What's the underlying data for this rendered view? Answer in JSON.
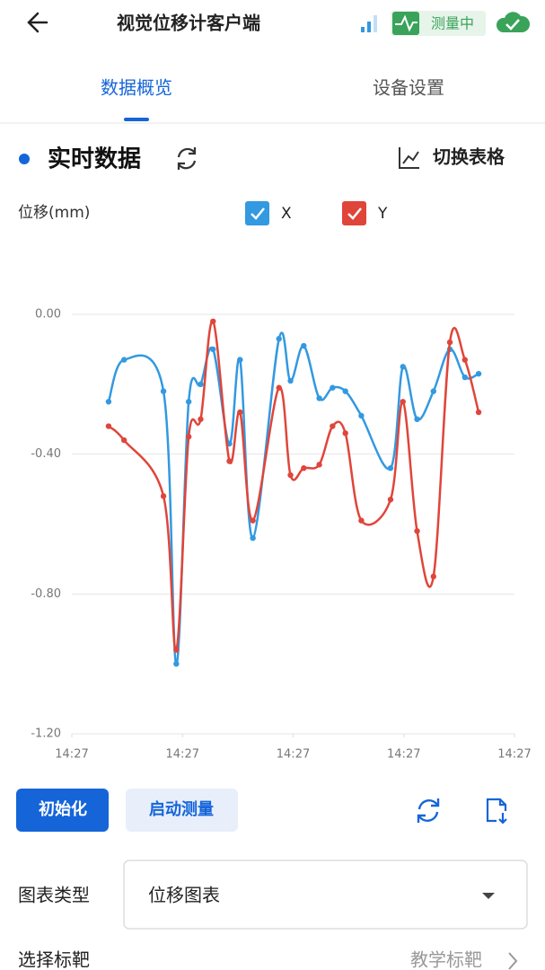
{
  "header": {
    "title": "视觉位移计客户端",
    "status": "测量中"
  },
  "tabs": [
    "数据概览",
    "设备设置"
  ],
  "section": {
    "title": "实时数据",
    "toggle": "切换表格"
  },
  "chart_data": {
    "type": "line",
    "y_label": "位移(mm)",
    "x": [
      8.3,
      11.8,
      20.7,
      23.6,
      26.4,
      29.1,
      31.9,
      35.6,
      38.0,
      40.9,
      46.8,
      49.4,
      52.4,
      55.9,
      58.9,
      61.8,
      65.4,
      72.0,
      74.8,
      78.0,
      81.7,
      85.4,
      88.8,
      91.9
    ],
    "xlim": [
      0,
      100
    ],
    "xticks": [
      {
        "value": 0,
        "label": "14:27"
      },
      {
        "value": 25,
        "label": "14:27"
      },
      {
        "value": 50,
        "label": "14:27"
      },
      {
        "value": 75,
        "label": "14:27"
      },
      {
        "value": 100,
        "label": "14:27"
      }
    ],
    "ylim": [
      -1.2,
      0
    ],
    "yticks": [
      {
        "value": 0,
        "label": "0.00"
      },
      {
        "value": -0.4,
        "label": "-0.40"
      },
      {
        "value": -0.8,
        "label": "-0.80"
      },
      {
        "value": -1.2,
        "label": "-1.20"
      }
    ],
    "grid": true,
    "series": [
      {
        "name": "X",
        "color": "#3399e0",
        "values": [
          -0.25,
          -0.13,
          -0.22,
          -1.0,
          -0.25,
          -0.2,
          -0.1,
          -0.37,
          -0.13,
          -0.64,
          -0.07,
          -0.19,
          -0.09,
          -0.24,
          -0.21,
          -0.22,
          -0.29,
          -0.44,
          -0.15,
          -0.3,
          -0.22,
          -0.1,
          -0.18,
          -0.17
        ]
      },
      {
        "name": "Y",
        "color": "#e0453a",
        "values": [
          -0.32,
          -0.36,
          -0.52,
          -0.96,
          -0.35,
          -0.3,
          -0.02,
          -0.42,
          -0.28,
          -0.59,
          -0.21,
          -0.46,
          -0.44,
          -0.43,
          -0.32,
          -0.34,
          -0.59,
          -0.53,
          -0.25,
          -0.62,
          -0.75,
          -0.08,
          -0.13,
          -0.28
        ]
      }
    ]
  },
  "buttons": [
    "初始化",
    "启动测量"
  ],
  "settings": [
    {
      "label": "图表类型",
      "value": "位移图表"
    },
    {
      "label": "选择标靶",
      "value": "教学标靶"
    }
  ]
}
